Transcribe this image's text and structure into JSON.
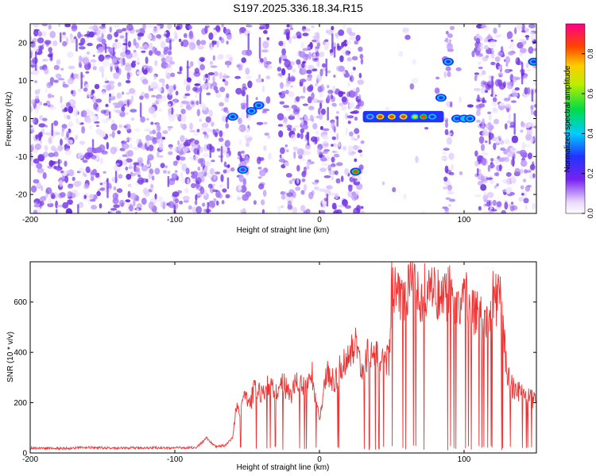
{
  "title": "S197.2025.336.18.34.R15",
  "chart_data": [
    {
      "type": "heatmap",
      "xlabel": "Height of straight line (km)",
      "ylabel": "Frequency (Hz)",
      "xlim": [
        -200,
        150
      ],
      "ylim": [
        -25,
        25
      ],
      "xticks": [
        -200,
        -100,
        0,
        100
      ],
      "yticks": [
        -20,
        -10,
        0,
        10,
        20
      ],
      "colorbar": {
        "label": "Normalized spectral amplitude",
        "range": [
          0,
          0.95
        ],
        "ticks": [
          0.0,
          0.2,
          0.4,
          0.6,
          0.8
        ],
        "tick_labels": [
          "0.0",
          "0.2",
          "0.4",
          "0.6",
          "0.8"
        ]
      },
      "noise_gaps_km": [
        [
          -62,
          -56
        ],
        [
          -48,
          -42
        ],
        [
          -35,
          -28
        ],
        [
          30,
          86
        ],
        [
          92,
          108
        ]
      ],
      "features": [
        {
          "x": -60,
          "y": 0.5,
          "amp": 0.3
        },
        {
          "x": -53,
          "y": -13.5,
          "amp": 0.25
        },
        {
          "x": -47,
          "y": 2,
          "amp": 0.3
        },
        {
          "x": -42,
          "y": 3.5,
          "amp": 0.4
        },
        {
          "x": 25,
          "y": -14,
          "amp": 0.9
        },
        {
          "x": 35,
          "y": 0.5,
          "amp": 0.25
        },
        {
          "x": 42,
          "y": 0.5,
          "amp": 0.95
        },
        {
          "x": 50,
          "y": 0.5,
          "amp": 0.95
        },
        {
          "x": 58,
          "y": 0.5,
          "amp": 0.95
        },
        {
          "x": 66,
          "y": 0.5,
          "amp": 0.7
        },
        {
          "x": 72,
          "y": 0.5,
          "amp": 0.9
        },
        {
          "x": 78,
          "y": 0.5,
          "amp": 0.4
        },
        {
          "x": 84,
          "y": 5.5,
          "amp": 0.3
        },
        {
          "x": 89,
          "y": 15,
          "amp": 0.35
        },
        {
          "x": 95,
          "y": 0,
          "amp": 0.35
        },
        {
          "x": 100,
          "y": 0,
          "amp": 0.45
        },
        {
          "x": 104,
          "y": 0,
          "amp": 0.3
        },
        {
          "x": 148,
          "y": 15,
          "amp": 0.3
        }
      ]
    },
    {
      "type": "line",
      "xlabel": "Height of straight line (km)",
      "ylabel": "SNR (10 * v/v)",
      "xlim": [
        -200,
        150
      ],
      "ylim": [
        0,
        760
      ],
      "xticks": [
        -200,
        -100,
        0,
        100
      ],
      "yticks": [
        0,
        200,
        400,
        600
      ],
      "series": [
        {
          "name": "SNR",
          "color": "#ee3333",
          "x": [
            -200,
            -180,
            -160,
            -140,
            -120,
            -100,
            -85,
            -78,
            -72,
            -65,
            -60,
            -57,
            -55,
            -52,
            -48,
            -45,
            -42,
            -38,
            -35,
            -30,
            -25,
            -20,
            -15,
            -10,
            -5,
            0,
            5,
            10,
            15,
            20,
            25,
            30,
            35,
            40,
            45,
            48,
            50,
            55,
            60,
            65,
            70,
            75,
            80,
            85,
            90,
            95,
            100,
            105,
            110,
            115,
            120,
            125,
            130,
            135,
            140,
            145,
            150
          ],
          "y": [
            20,
            18,
            22,
            19,
            21,
            20,
            22,
            60,
            25,
            30,
            60,
            200,
            170,
            230,
            190,
            260,
            250,
            230,
            280,
            240,
            280,
            220,
            300,
            250,
            310,
            120,
            330,
            280,
            350,
            380,
            430,
            340,
            410,
            380,
            360,
            370,
            660,
            620,
            640,
            660,
            600,
            680,
            640,
            620,
            640,
            560,
            640,
            570,
            560,
            480,
            620,
            600,
            300,
            250,
            240,
            220,
            200
          ]
        }
      ]
    }
  ]
}
